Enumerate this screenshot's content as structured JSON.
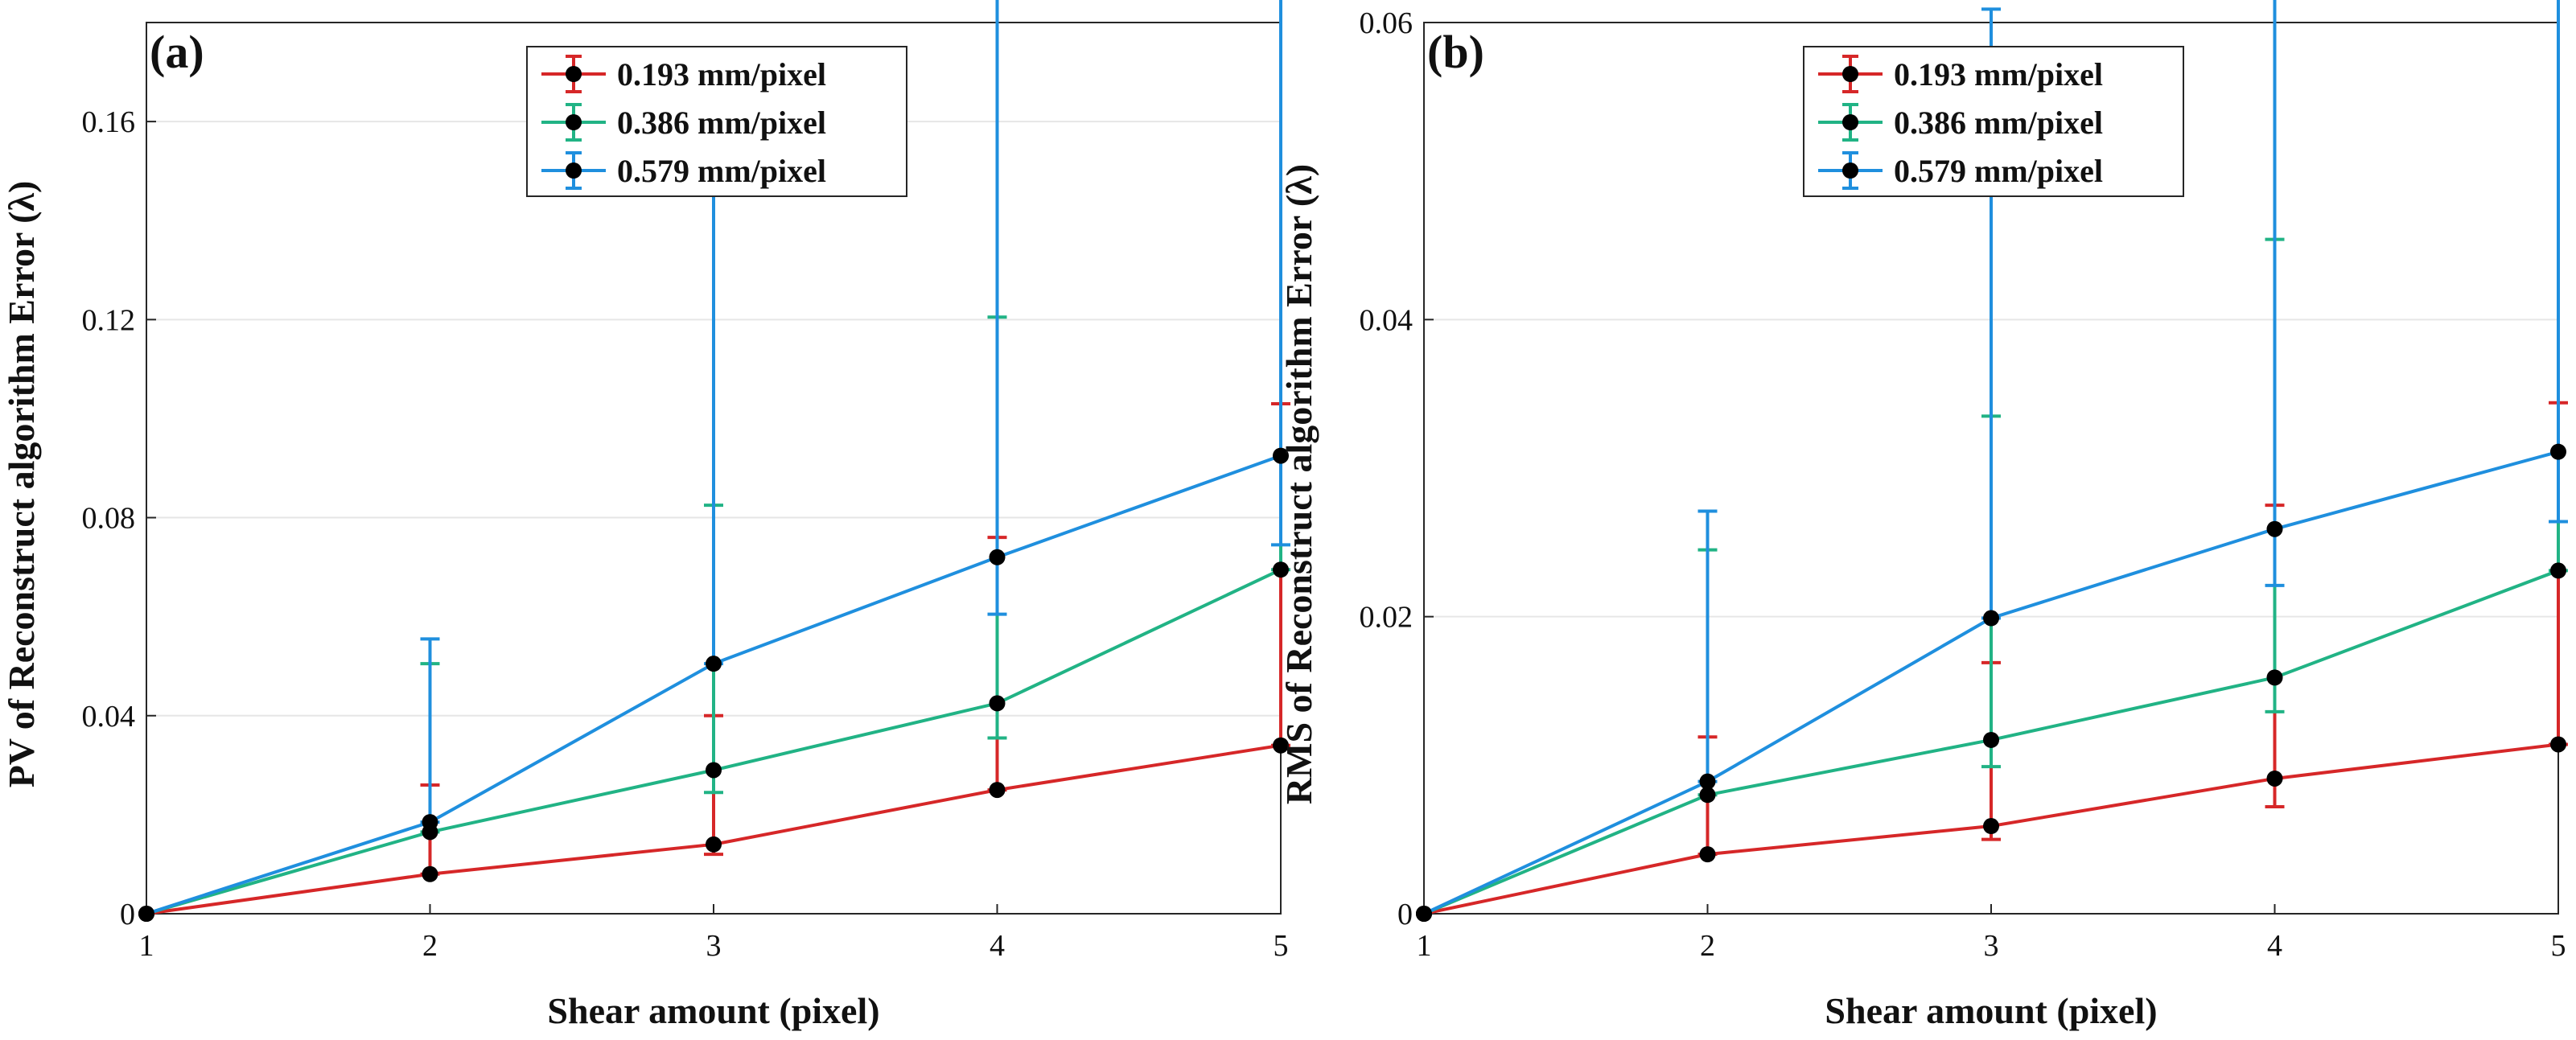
{
  "chart_data": [
    {
      "type": "line",
      "panel_label": "(a)",
      "xlabel": "Shear amount (pixel)",
      "ylabel": "PV of Reconstruct algorithm Error (λ)",
      "x": [
        1,
        2,
        3,
        4,
        5
      ],
      "xlim": [
        1,
        5
      ],
      "ylim": [
        0,
        0.18
      ],
      "xticks": [
        "1",
        "2",
        "3",
        "4",
        "5"
      ],
      "yticks": [
        0,
        0.04,
        0.08,
        0.12,
        0.16
      ],
      "ytick_labels": [
        "0",
        "0.04",
        "0.08",
        "0.12",
        "0.16"
      ],
      "grid": true,
      "legend_position": "top-center",
      "series": [
        {
          "name": "0.193 mm/pixel",
          "color": "#d62728",
          "values": [
            0,
            0.008,
            0.014,
            0.025,
            0.034
          ],
          "err_lower": [
            0,
            0,
            0.002,
            0,
            0
          ],
          "err_upper": [
            0,
            0.018,
            0.026,
            0.051,
            0.069
          ]
        },
        {
          "name": "0.386 mm/pixel",
          "color": "#21b385",
          "values": [
            0,
            0.0165,
            0.029,
            0.0425,
            0.0695
          ],
          "err_lower": [
            0,
            0,
            0.0045,
            0.007,
            0
          ],
          "err_upper": [
            0,
            0.034,
            0.0535,
            0.078,
            0.139
          ]
        },
        {
          "name": "0.579 mm/pixel",
          "color": "#1f8fde",
          "values": [
            0,
            0.0185,
            0.0505,
            0.072,
            0.0925
          ],
          "err_lower": [
            0,
            0,
            0,
            0.0115,
            0.018
          ],
          "err_upper": [
            0,
            0.037,
            0.103,
            0.1325,
            0.167
          ]
        }
      ]
    },
    {
      "type": "line",
      "panel_label": "(b)",
      "xlabel": "Shear amount (pixel)",
      "ylabel": "RMS of Reconstruct algorithm Error (λ)",
      "x": [
        1,
        2,
        3,
        4,
        5
      ],
      "xlim": [
        1,
        5
      ],
      "ylim": [
        0,
        0.06
      ],
      "xticks": [
        "1",
        "2",
        "3",
        "4",
        "5"
      ],
      "yticks": [
        0,
        0.02,
        0.04,
        0.06
      ],
      "ytick_labels": [
        "0",
        "0.02",
        "0.04",
        "0.06"
      ],
      "grid": true,
      "legend_position": "top-center",
      "series": [
        {
          "name": "0.193 mm/pixel",
          "color": "#d62728",
          "values": [
            0,
            0.004,
            0.0059,
            0.0091,
            0.0114
          ],
          "err_lower": [
            0,
            0,
            0.0009,
            0.0019,
            0
          ],
          "err_upper": [
            0,
            0.0079,
            0.011,
            0.0184,
            0.023
          ]
        },
        {
          "name": "0.386 mm/pixel",
          "color": "#21b385",
          "values": [
            0,
            0.008,
            0.0117,
            0.0159,
            0.0231
          ],
          "err_lower": [
            0,
            0,
            0.0018,
            0.0023,
            0
          ],
          "err_upper": [
            0,
            0.0165,
            0.0218,
            0.0295,
            0.0471
          ]
        },
        {
          "name": "0.579 mm/pixel",
          "color": "#1f8fde",
          "values": [
            0,
            0.0089,
            0.0199,
            0.0259,
            0.0311
          ],
          "err_lower": [
            0,
            0,
            0,
            0.0038,
            0.0047
          ],
          "err_upper": [
            0,
            0.0182,
            0.041,
            0.0481,
            0.0576
          ]
        }
      ]
    }
  ]
}
